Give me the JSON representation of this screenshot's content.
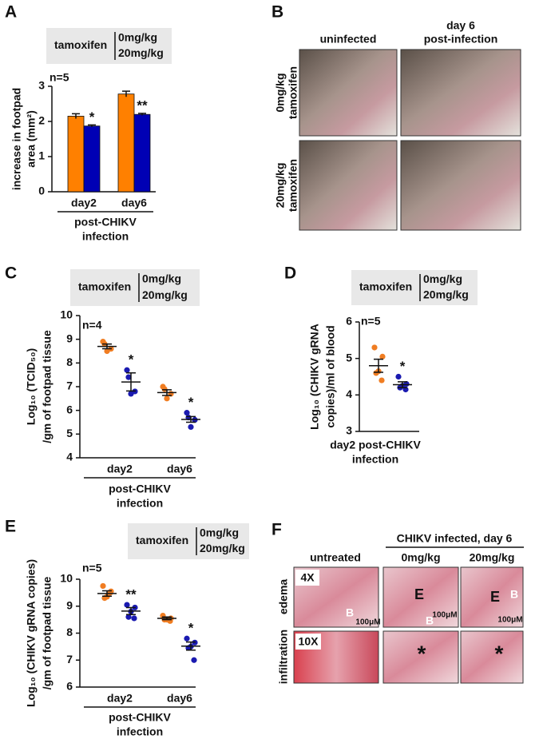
{
  "chart_data": [
    {
      "panel": "A",
      "type": "bar",
      "legend_title": "tamoxifen",
      "note": "n=5",
      "categories": [
        "day2",
        "day6"
      ],
      "xlabel": [
        "post-CHIKV",
        "infection"
      ],
      "ylabel": [
        "increase in footpad",
        "area (mm²)"
      ],
      "ylim": [
        0,
        3
      ],
      "yticks": [
        0,
        1,
        2,
        3
      ],
      "series": [
        {
          "name": "0mg/kg",
          "color": "#ff8000",
          "values": [
            2.15,
            2.78
          ],
          "errors": [
            0.07,
            0.08
          ]
        },
        {
          "name": "20mg/kg",
          "color": "#0000b4",
          "values": [
            1.87,
            2.2
          ],
          "errors": [
            0.03,
            0.03
          ],
          "significance": [
            "*",
            "**"
          ]
        }
      ]
    },
    {
      "panel": "C",
      "type": "dot",
      "legend_title": "tamoxifen",
      "note": "n=4",
      "categories": [
        "day2",
        "day6"
      ],
      "xlabel": [
        "post-CHIKV",
        "infection"
      ],
      "ylabel": [
        "Log₁₀ (TCID₅₀)",
        "/gm of footpad tissue"
      ],
      "ylim": [
        4,
        10
      ],
      "yticks": [
        4,
        5,
        6,
        7,
        8,
        9,
        10
      ],
      "series": [
        {
          "name": "0mg/kg",
          "color": "#f07d22",
          "values": [
            [
              8.9,
              8.6,
              8.5,
              8.8
            ],
            [
              7.0,
              6.7,
              6.5,
              6.9
            ]
          ],
          "means": [
            8.7,
            6.75
          ],
          "errors": [
            0.1,
            0.12
          ]
        },
        {
          "name": "20mg/kg",
          "color": "#1a1ab0",
          "values": [
            [
              7.7,
              6.8,
              6.7,
              7.4
            ],
            [
              5.9,
              5.6,
              5.3,
              5.7
            ]
          ],
          "means": [
            7.2,
            5.62
          ],
          "errors": [
            0.38,
            0.12
          ],
          "significance": [
            "*",
            "*"
          ]
        }
      ]
    },
    {
      "panel": "D",
      "type": "dot",
      "legend_title": "tamoxifen",
      "note": "n=5",
      "categories": [
        null
      ],
      "xlabel": [
        "day2 post-CHIKV",
        "infection"
      ],
      "ylabel": [
        "Log₁₀ (CHIKV gRNA",
        "copies)/ml of blood"
      ],
      "ylim": [
        3,
        6
      ],
      "yticks": [
        3,
        4,
        5,
        6
      ],
      "series": [
        {
          "name": "0mg/kg",
          "color": "#f07d22",
          "values": [
            [
              5.3,
              5.05,
              4.65,
              4.6,
              4.4
            ]
          ],
          "means": [
            4.8
          ],
          "errors": [
            0.18
          ]
        },
        {
          "name": "20mg/kg",
          "color": "#1a1ab0",
          "values": [
            [
              4.5,
              4.3,
              4.25,
              4.2,
              4.15
            ]
          ],
          "means": [
            4.28
          ],
          "errors": [
            0.08
          ],
          "significance": [
            "*"
          ]
        }
      ]
    },
    {
      "panel": "E",
      "type": "dot",
      "legend_title": "tamoxifen",
      "note": "n=5",
      "categories": [
        "day2",
        "day6"
      ],
      "xlabel": [
        "post-CHIKV",
        "infection"
      ],
      "ylabel": [
        "Log₁₀ (CHIKV gRNA copies)",
        "/gm of footpad tissue"
      ],
      "ylim": [
        6,
        10
      ],
      "yticks": [
        6,
        7,
        8,
        9,
        10
      ],
      "series": [
        {
          "name": "0mg/kg",
          "color": "#f07d22",
          "values": [
            [
              9.75,
              9.55,
              9.35,
              9.3,
              9.5
            ],
            [
              8.65,
              8.55,
              8.5,
              8.5,
              8.45
            ]
          ],
          "means": [
            9.47,
            8.55
          ],
          "errors": [
            0.1,
            0.05
          ]
        },
        {
          "name": "20mg/kg",
          "color": "#1a1ab0",
          "values": [
            [
              9.05,
              8.95,
              8.8,
              8.6,
              8.55
            ],
            [
              7.8,
              7.65,
              7.5,
              7.45,
              7.0
            ]
          ],
          "means": [
            8.82,
            7.52
          ],
          "errors": [
            0.13,
            0.15
          ],
          "significance": [
            "**",
            "*"
          ]
        }
      ]
    }
  ],
  "panel_b": {
    "letter": "B",
    "columns": [
      [
        "uninfected"
      ],
      [
        "day 6",
        "post-infection"
      ]
    ],
    "rows": [
      [
        "0mg/kg",
        "tamoxifen"
      ],
      [
        "20mg/kg",
        "tamoxifen"
      ]
    ]
  },
  "panel_f": {
    "letter": "F",
    "header": "CHIKV infected, day 6",
    "columns": [
      "untreated",
      "0mg/kg",
      "20mg/kg"
    ],
    "rows": [
      "edema",
      "infiltration"
    ],
    "images": [
      [
        [
          "4X",
          "B",
          "100μM"
        ],
        [
          "E",
          "B",
          "100μM"
        ],
        [
          "E",
          "B",
          "100μM"
        ]
      ],
      [
        [
          "10X"
        ],
        [
          "*"
        ],
        [
          "*"
        ]
      ]
    ]
  }
}
